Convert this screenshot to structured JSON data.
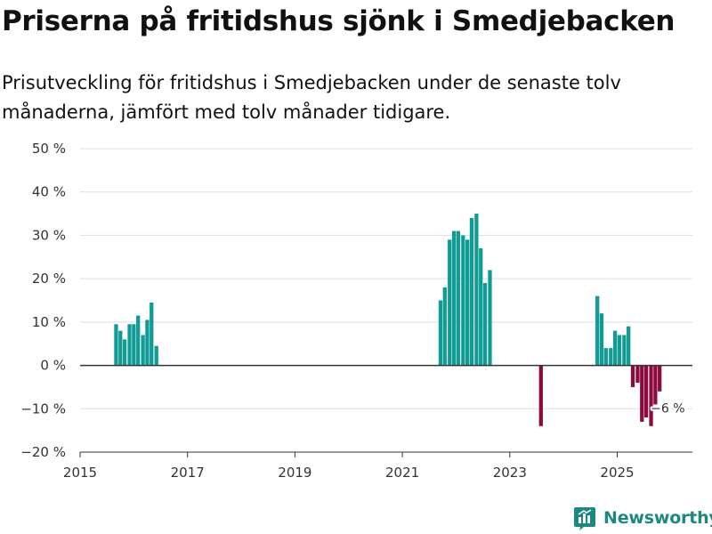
{
  "title": "Priserna på fritidshus sjönk i Smedjebacken",
  "subtitle": "Prisutveckling för fritidshus i Smedjebacken under de senaste tolv månaderna, jämfört med tolv månader tidigare.",
  "brand": "Newsworthy",
  "colors": {
    "positive": "#0e9c94",
    "negative": "#8b0a3f",
    "grid": "#dddddd",
    "axis": "#333333",
    "brand": "#1a8a80"
  },
  "chart_data": {
    "type": "bar",
    "title": "Priserna på fritidshus sjönk i Smedjebacken",
    "xlabel": "",
    "ylabel": "",
    "ylim": [
      -20,
      50
    ],
    "xlim": [
      2015,
      2026.4
    ],
    "yticks": [
      -20,
      -10,
      0,
      10,
      20,
      30,
      40,
      50
    ],
    "ytick_labels": [
      "−20 %",
      "−10 %",
      "0 %",
      "10 %",
      "20 %",
      "30 %",
      "40 %",
      "50 %"
    ],
    "xticks": [
      2015,
      2017,
      2019,
      2021,
      2023,
      2025
    ],
    "xtick_labels": [
      "2015",
      "2017",
      "2019",
      "2021",
      "2023",
      "2025"
    ],
    "annotation": {
      "x": 2025.79,
      "y": -6,
      "label": "−6 %"
    },
    "series": [
      {
        "name": "Prisutveckling",
        "x": [
          2015.67,
          2015.75,
          2015.83,
          2015.92,
          2016.0,
          2016.08,
          2016.17,
          2016.25,
          2016.33,
          2016.42,
          2021.71,
          2021.79,
          2021.88,
          2021.96,
          2022.04,
          2022.13,
          2022.21,
          2022.29,
          2022.38,
          2022.46,
          2022.54,
          2022.63,
          2023.58,
          2024.63,
          2024.71,
          2024.79,
          2024.88,
          2024.96,
          2025.04,
          2025.13,
          2025.21,
          2025.29,
          2025.38,
          2025.46,
          2025.54,
          2025.63,
          2025.71,
          2025.79
        ],
        "values": [
          9.5,
          8,
          6,
          9.5,
          9.5,
          11.5,
          7,
          10.5,
          14.5,
          4.5,
          15,
          18,
          29,
          31,
          31,
          30,
          29,
          34,
          35,
          27,
          19,
          22,
          -14,
          16,
          12,
          4,
          4,
          8,
          7,
          7,
          9,
          -5,
          -4,
          -13,
          -12,
          -14,
          -9,
          -6
        ]
      }
    ]
  }
}
